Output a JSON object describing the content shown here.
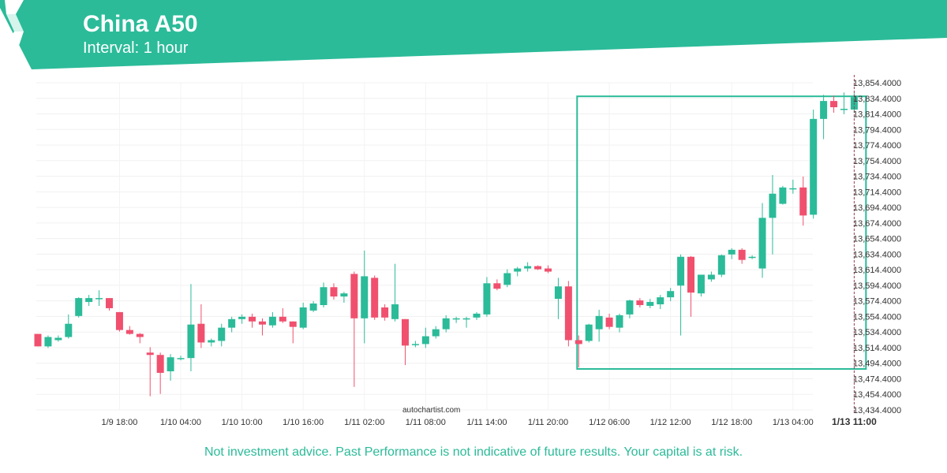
{
  "header": {
    "title": "China A50",
    "subtitle": "Interval: 1 hour",
    "brand_color": "#2bbb99"
  },
  "watermark": "autochartist.com",
  "disclaimer": "Not investment advice. Past Performance is not indicative of future results. Your capital is at risk.",
  "chart_data": {
    "type": "candlestick",
    "title": "China A50",
    "interval": "1 hour",
    "ylim": [
      13434.4,
      13854.4
    ],
    "y_ticks": [
      13434.4,
      13454.4,
      13474.4,
      13494.4,
      13514.4,
      13534.4,
      13554.4,
      13574.4,
      13594.4,
      13614.4,
      13634.4,
      13654.4,
      13674.4,
      13694.4,
      13714.4,
      13734.4,
      13754.4,
      13774.4,
      13794.4,
      13814.4,
      13834.4,
      13854.4
    ],
    "y_tick_labels": [
      "13,434.4000",
      "13,454.4000",
      "13,474.4000",
      "13,494.4000",
      "13,514.4000",
      "13,534.4000",
      "13,554.4000",
      "13,574.4000",
      "13,594.4000",
      "13,614.4000",
      "13,634.4000",
      "13,654.4000",
      "13,674.4000",
      "13,694.4000",
      "13,714.4000",
      "13,734.4000",
      "13,754.4000",
      "13,774.4000",
      "13,794.4000",
      "13,814.4000",
      "13,834.4000",
      "13,854.4000"
    ],
    "x_ticks": [
      {
        "label": "1/9 18:00",
        "index": 8
      },
      {
        "label": "1/10 04:00",
        "index": 14
      },
      {
        "label": "1/10 10:00",
        "index": 20
      },
      {
        "label": "1/10 16:00",
        "index": 26
      },
      {
        "label": "1/11 02:00",
        "index": 32
      },
      {
        "label": "1/11 08:00",
        "index": 38
      },
      {
        "label": "1/11 14:00",
        "index": 44
      },
      {
        "label": "1/11 20:00",
        "index": 50
      },
      {
        "label": "1/12 06:00",
        "index": 56
      },
      {
        "label": "1/12 12:00",
        "index": 62
      },
      {
        "label": "1/12 18:00",
        "index": 68
      },
      {
        "label": "1/13 04:00",
        "index": 74
      },
      {
        "label": "1/13 11:00",
        "index": 80,
        "bold": true
      }
    ],
    "colors": {
      "up": "#2bbb99",
      "down": "#f0506e"
    },
    "candles": [
      {
        "o": 13532,
        "h": 13532,
        "l": 13516,
        "c": 13516
      },
      {
        "o": 13516,
        "h": 13530,
        "l": 13514,
        "c": 13528
      },
      {
        "o": 13524,
        "h": 13530,
        "l": 13522,
        "c": 13527
      },
      {
        "o": 13528,
        "h": 13557,
        "l": 13526,
        "c": 13545
      },
      {
        "o": 13555,
        "h": 13579,
        "l": 13553,
        "c": 13578
      },
      {
        "o": 13573,
        "h": 13582,
        "l": 13568,
        "c": 13578
      },
      {
        "o": 13578,
        "h": 13588,
        "l": 13568,
        "c": 13578
      },
      {
        "o": 13578,
        "h": 13578,
        "l": 13562,
        "c": 13565
      },
      {
        "o": 13560,
        "h": 13560,
        "l": 13535,
        "c": 13537
      },
      {
        "o": 13537,
        "h": 13542,
        "l": 13531,
        "c": 13532
      },
      {
        "o": 13532,
        "h": 13533,
        "l": 13520,
        "c": 13528
      },
      {
        "o": 13508,
        "h": 13515,
        "l": 13452,
        "c": 13505
      },
      {
        "o": 13505,
        "h": 13508,
        "l": 13455,
        "c": 13482
      },
      {
        "o": 13484,
        "h": 13506,
        "l": 13472,
        "c": 13502
      },
      {
        "o": 13500,
        "h": 13504,
        "l": 13498,
        "c": 13501
      },
      {
        "o": 13501,
        "h": 13596,
        "l": 13484,
        "c": 13544
      },
      {
        "o": 13545,
        "h": 13570,
        "l": 13514,
        "c": 13521
      },
      {
        "o": 13521,
        "h": 13526,
        "l": 13516,
        "c": 13524
      },
      {
        "o": 13523,
        "h": 13545,
        "l": 13516,
        "c": 13540
      },
      {
        "o": 13540,
        "h": 13554,
        "l": 13534,
        "c": 13551
      },
      {
        "o": 13551,
        "h": 13557,
        "l": 13545,
        "c": 13554
      },
      {
        "o": 13554,
        "h": 13558,
        "l": 13540,
        "c": 13548
      },
      {
        "o": 13548,
        "h": 13552,
        "l": 13530,
        "c": 13544
      },
      {
        "o": 13543,
        "h": 13560,
        "l": 13540,
        "c": 13554
      },
      {
        "o": 13554,
        "h": 13565,
        "l": 13546,
        "c": 13548
      },
      {
        "o": 13548,
        "h": 13548,
        "l": 13520,
        "c": 13541
      },
      {
        "o": 13540,
        "h": 13572,
        "l": 13538,
        "c": 13566
      },
      {
        "o": 13562,
        "h": 13574,
        "l": 13560,
        "c": 13571
      },
      {
        "o": 13569,
        "h": 13598,
        "l": 13566,
        "c": 13592
      },
      {
        "o": 13592,
        "h": 13597,
        "l": 13576,
        "c": 13580
      },
      {
        "o": 13580,
        "h": 13586,
        "l": 13572,
        "c": 13584
      },
      {
        "o": 13609,
        "h": 13612,
        "l": 13464,
        "c": 13552
      },
      {
        "o": 13552,
        "h": 13639,
        "l": 13520,
        "c": 13606
      },
      {
        "o": 13604,
        "h": 13607,
        "l": 13550,
        "c": 13553
      },
      {
        "o": 13566,
        "h": 13570,
        "l": 13549,
        "c": 13553
      },
      {
        "o": 13551,
        "h": 13622,
        "l": 13548,
        "c": 13570
      },
      {
        "o": 13551,
        "h": 13551,
        "l": 13492,
        "c": 13517
      },
      {
        "o": 13518,
        "h": 13523,
        "l": 13515,
        "c": 13519
      },
      {
        "o": 13519,
        "h": 13540,
        "l": 13514,
        "c": 13529
      },
      {
        "o": 13529,
        "h": 13542,
        "l": 13526,
        "c": 13538
      },
      {
        "o": 13538,
        "h": 13556,
        "l": 13534,
        "c": 13552
      },
      {
        "o": 13552,
        "h": 13554,
        "l": 13546,
        "c": 13552
      },
      {
        "o": 13552,
        "h": 13554,
        "l": 13540,
        "c": 13552
      },
      {
        "o": 13553,
        "h": 13560,
        "l": 13550,
        "c": 13558
      },
      {
        "o": 13557,
        "h": 13605,
        "l": 13554,
        "c": 13597
      },
      {
        "o": 13597,
        "h": 13602,
        "l": 13588,
        "c": 13590
      },
      {
        "o": 13595,
        "h": 13615,
        "l": 13592,
        "c": 13610
      },
      {
        "o": 13612,
        "h": 13618,
        "l": 13606,
        "c": 13616
      },
      {
        "o": 13616,
        "h": 13624,
        "l": 13612,
        "c": 13619
      },
      {
        "o": 13619,
        "h": 13620,
        "l": 13614,
        "c": 13615
      },
      {
        "o": 13616,
        "h": 13620,
        "l": 13610,
        "c": 13612
      },
      {
        "o": 13577,
        "h": 13604,
        "l": 13551,
        "c": 13593
      },
      {
        "o": 13593,
        "h": 13600,
        "l": 13516,
        "c": 13524
      },
      {
        "o": 13524,
        "h": 13530,
        "l": 13489,
        "c": 13519
      },
      {
        "o": 13523,
        "h": 13545,
        "l": 13521,
        "c": 13544
      },
      {
        "o": 13538,
        "h": 13563,
        "l": 13522,
        "c": 13555
      },
      {
        "o": 13553,
        "h": 13558,
        "l": 13538,
        "c": 13541
      },
      {
        "o": 13540,
        "h": 13558,
        "l": 13534,
        "c": 13556
      },
      {
        "o": 13557,
        "h": 13576,
        "l": 13552,
        "c": 13575
      },
      {
        "o": 13575,
        "h": 13578,
        "l": 13566,
        "c": 13569
      },
      {
        "o": 13568,
        "h": 13577,
        "l": 13565,
        "c": 13573
      },
      {
        "o": 13570,
        "h": 13582,
        "l": 13564,
        "c": 13579
      },
      {
        "o": 13579,
        "h": 13591,
        "l": 13574,
        "c": 13587
      },
      {
        "o": 13594,
        "h": 13634,
        "l": 13530,
        "c": 13631
      },
      {
        "o": 13631,
        "h": 13632,
        "l": 13554,
        "c": 13585
      },
      {
        "o": 13584,
        "h": 13608,
        "l": 13580,
        "c": 13608
      },
      {
        "o": 13602,
        "h": 13612,
        "l": 13599,
        "c": 13608
      },
      {
        "o": 13608,
        "h": 13634,
        "l": 13605,
        "c": 13633
      },
      {
        "o": 13634,
        "h": 13642,
        "l": 13628,
        "c": 13640
      },
      {
        "o": 13640,
        "h": 13642,
        "l": 13622,
        "c": 13627
      },
      {
        "o": 13630,
        "h": 13633,
        "l": 13628,
        "c": 13631
      },
      {
        "o": 13616,
        "h": 13700,
        "l": 13604,
        "c": 13681
      },
      {
        "o": 13681,
        "h": 13736,
        "l": 13634,
        "c": 13712
      },
      {
        "o": 13699,
        "h": 13722,
        "l": 13698,
        "c": 13720
      },
      {
        "o": 13718,
        "h": 13730,
        "l": 13712,
        "c": 13719
      },
      {
        "o": 13720,
        "h": 13734,
        "l": 13671,
        "c": 13684
      },
      {
        "o": 13685,
        "h": 13820,
        "l": 13680,
        "c": 13808
      },
      {
        "o": 13808,
        "h": 13839,
        "l": 13782,
        "c": 13831
      },
      {
        "o": 13831,
        "h": 13838,
        "l": 13816,
        "c": 13823
      },
      {
        "o": 13821,
        "h": 13842,
        "l": 13814,
        "c": 13821
      },
      {
        "o": 13820,
        "h": 13841,
        "l": 13816,
        "c": 13836
      }
    ],
    "pattern_box": {
      "start_index": 53,
      "end_index": 81,
      "low": 13487,
      "high": 13837
    },
    "current_time_index": 80,
    "grid": true
  }
}
